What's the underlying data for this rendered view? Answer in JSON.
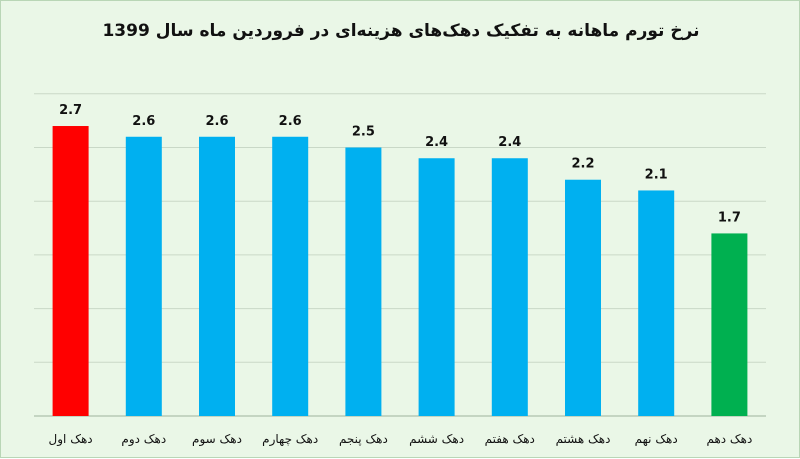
{
  "title": "نرخ تورم ماهانه به تفکیک دهک‌های هزینه‌ای در فروردین ماه سال 1399",
  "chart_data": {
    "type": "bar",
    "title": "نرخ تورم ماهانه به تفکیک دهک‌های هزینه‌ای در فروردین ماه سال 1399",
    "categories": [
      "دهک اول",
      "دهک دوم",
      "دهک سوم",
      "دهک چهارم",
      "دهک پنجم",
      "دهک ششم",
      "دهک هفتم",
      "دهک هشتم",
      "دهک نهم",
      "دهک دهم"
    ],
    "values": [
      2.7,
      2.6,
      2.6,
      2.6,
      2.5,
      2.4,
      2.4,
      2.2,
      2.1,
      1.7
    ],
    "value_labels": [
      "2.7",
      "2.6",
      "2.6",
      "2.6",
      "2.5",
      "2.4",
      "2.4",
      "2.2",
      "2.1",
      "1.7"
    ],
    "bar_colors": [
      "#ff0000",
      "#00b0f0",
      "#00b0f0",
      "#00b0f0",
      "#00b0f0",
      "#00b0f0",
      "#00b0f0",
      "#00b0f0",
      "#00b0f0",
      "#00b050"
    ],
    "xlabel": "",
    "ylabel": "",
    "ylim": [
      0,
      3
    ],
    "grid": true,
    "legend": "none"
  }
}
